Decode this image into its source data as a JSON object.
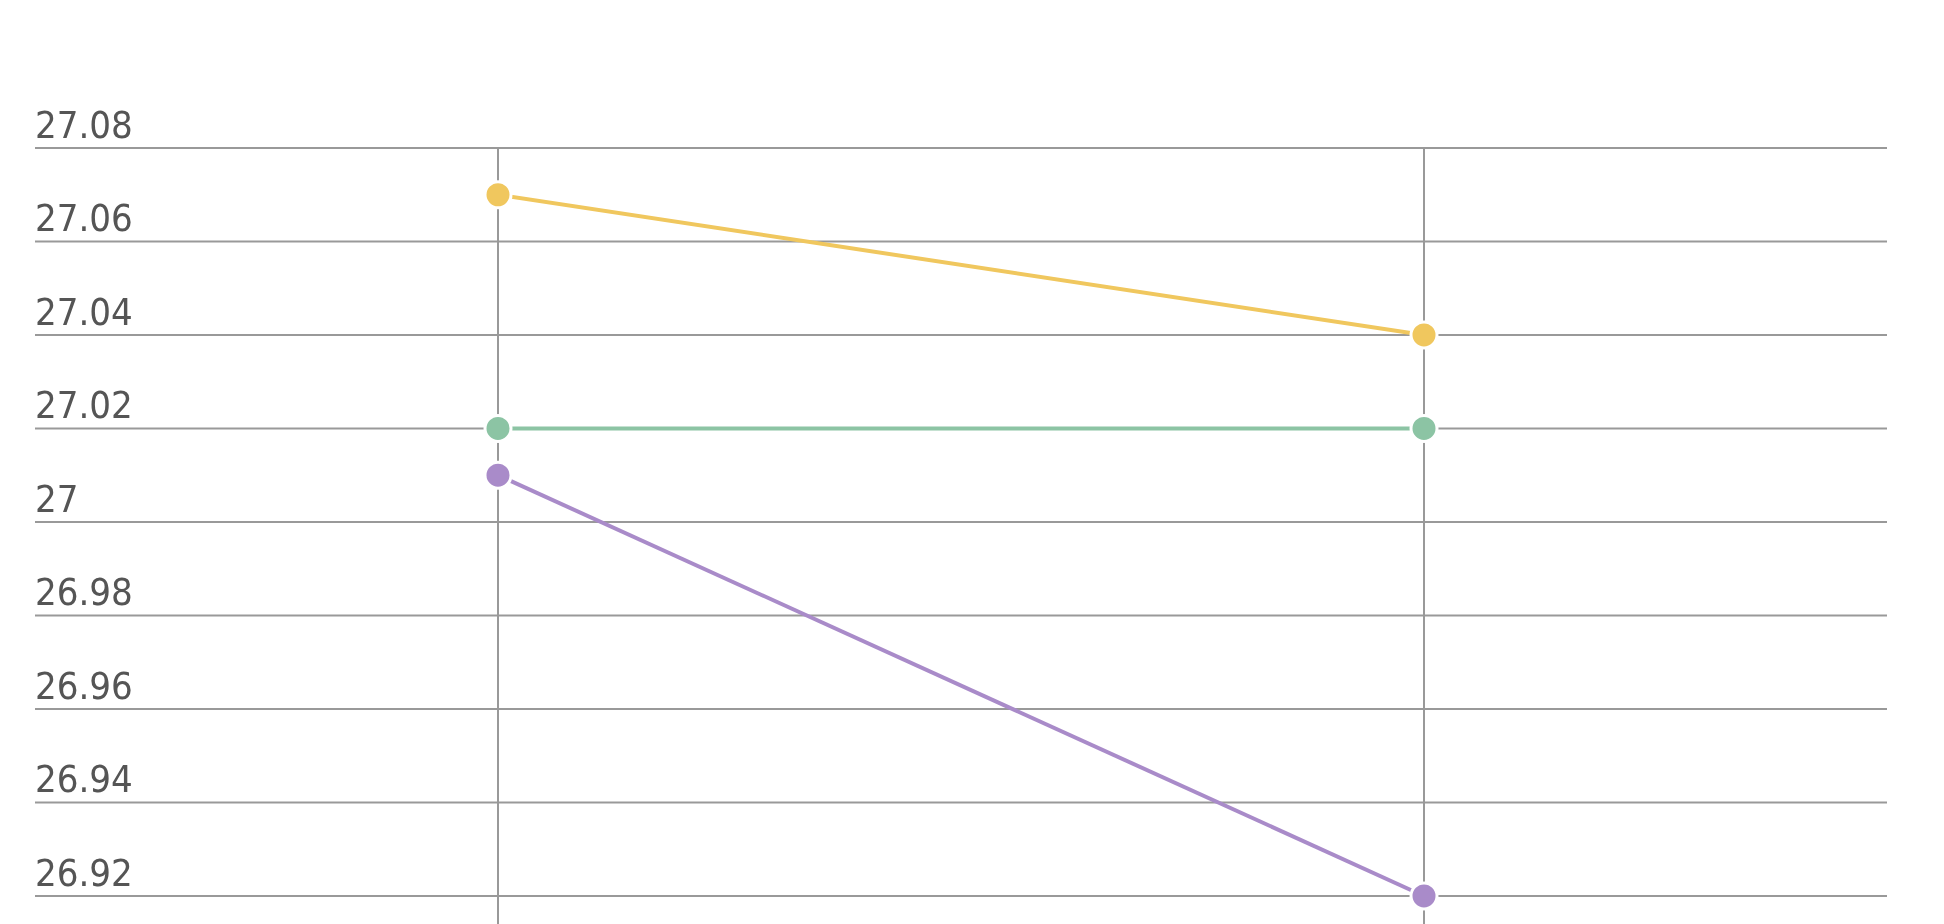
{
  "chart_data": {
    "type": "line",
    "categories": [
      null,
      null
    ],
    "series": [
      {
        "color": "#f0c75e",
        "values": [
          27.07,
          27.04
        ]
      },
      {
        "color": "#8cc4a4",
        "values": [
          27.02,
          27.02
        ]
      },
      {
        "color": "#a98bc9",
        "values": [
          27.01,
          26.92
        ]
      }
    ],
    "ylim": [
      26.914,
      27.08
    ],
    "yticks": [
      26.92,
      26.94,
      26.96,
      26.98,
      27,
      27.02,
      27.04,
      27.06,
      27.08
    ],
    "grid": true,
    "marker": "circle",
    "line_style": "solid",
    "tick_labels": "y"
  }
}
